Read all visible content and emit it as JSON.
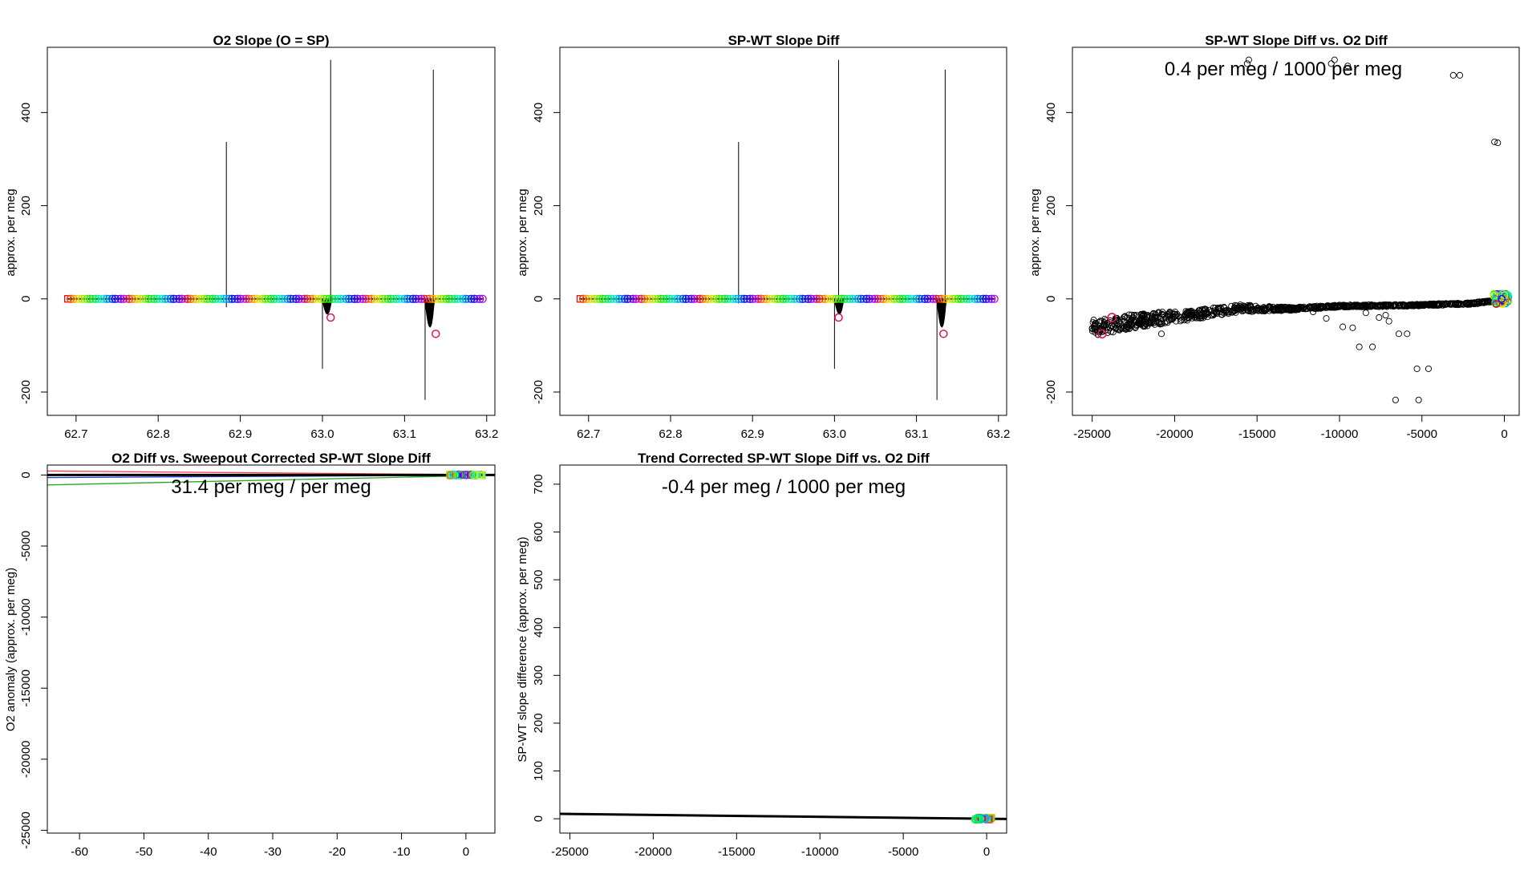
{
  "figure": {
    "background": "#ffffff",
    "layout": "2 rows x 3 columns (last cell empty)"
  },
  "chart_data": [
    {
      "id": "p1",
      "type": "scatter",
      "title": "O2 Slope (O = SP)",
      "xlabel": "",
      "ylabel": "approx. per meg",
      "xlim": [
        62.665,
        63.21
      ],
      "ylim": [
        -250,
        540
      ],
      "xticks": [
        62.7,
        62.8,
        62.9,
        63.0,
        63.1,
        63.2
      ],
      "xtick_labels": [
        "62.7",
        "62.8",
        "62.9",
        "63.0",
        "63.1",
        "63.2"
      ],
      "yticks": [
        -200,
        0,
        200,
        400
      ],
      "ytick_labels": [
        "-200",
        "0",
        "200",
        "400"
      ],
      "baseline": {
        "x_start": 62.69,
        "x_end": 63.195,
        "y": 0
      },
      "spikes": [
        {
          "x": 62.883,
          "ymin": -18,
          "ymax": 337
        },
        {
          "x": 63.0,
          "ymin": -150,
          "ymax": 0
        },
        {
          "x": 63.01,
          "ymin": 0,
          "ymax": 513
        },
        {
          "x": 63.125,
          "ymin": -217,
          "ymax": 0
        },
        {
          "x": 63.135,
          "ymin": 0,
          "ymax": 492
        }
      ],
      "dips": [
        {
          "x_start": 63.0,
          "x_end": 63.012,
          "y_min": -40
        },
        {
          "x_start": 63.125,
          "x_end": 63.137,
          "y_min": -75
        }
      ],
      "highlighted_points": [
        {
          "x": 63.01,
          "y": -40
        },
        {
          "x": 63.138,
          "y": -75
        }
      ],
      "point_color_scheme": "rainbow",
      "grid": false
    },
    {
      "id": "p2",
      "type": "scatter",
      "title": "SP-WT Slope Diff",
      "xlabel": "",
      "ylabel": "approx. per meg",
      "xlim": [
        62.665,
        63.21
      ],
      "ylim": [
        -250,
        540
      ],
      "xticks": [
        62.7,
        62.8,
        62.9,
        63.0,
        63.1,
        63.2
      ],
      "xtick_labels": [
        "62.7",
        "62.8",
        "62.9",
        "63.0",
        "63.1",
        "63.2"
      ],
      "yticks": [
        -200,
        0,
        200,
        400
      ],
      "ytick_labels": [
        "-200",
        "0",
        "200",
        "400"
      ],
      "baseline": {
        "x_start": 62.69,
        "x_end": 63.195,
        "y": 0
      },
      "spikes": [
        {
          "x": 62.883,
          "ymin": -10,
          "ymax": 337
        },
        {
          "x": 63.0,
          "ymin": -150,
          "ymax": 0
        },
        {
          "x": 63.005,
          "ymin": 0,
          "ymax": 513
        },
        {
          "x": 63.125,
          "ymin": -217,
          "ymax": 0
        },
        {
          "x": 63.135,
          "ymin": 0,
          "ymax": 492
        }
      ],
      "dips": [
        {
          "x_start": 63.0,
          "x_end": 63.012,
          "y_min": -40
        },
        {
          "x_start": 63.125,
          "x_end": 63.137,
          "y_min": -75
        }
      ],
      "highlighted_points": [
        {
          "x": 63.005,
          "y": -40
        },
        {
          "x": 63.133,
          "y": -75
        }
      ],
      "point_color_scheme": "rainbow",
      "grid": false
    },
    {
      "id": "p3",
      "type": "scatter",
      "title": "SP-WT Slope Diff vs. O2 Diff",
      "annotation": "0.4 per meg / 1000 per meg",
      "xlabel": "",
      "ylabel": "approx. per meg",
      "xlim": [
        -26200,
        900
      ],
      "ylim": [
        -250,
        540
      ],
      "xticks": [
        -25000,
        -20000,
        -15000,
        -10000,
        -5000,
        0
      ],
      "xtick_labels": [
        "-25000",
        "-20000",
        "-15000",
        "-10000",
        "-5000",
        "0"
      ],
      "yticks": [
        -200,
        0,
        200,
        400
      ],
      "ytick_labels": [
        "-200",
        "0",
        "200",
        "400"
      ],
      "band_upper": [
        [
          -25000,
          -45
        ],
        [
          -22000,
          -30
        ],
        [
          -19000,
          -25
        ],
        [
          -16000,
          -12
        ],
        [
          -13000,
          -18
        ],
        [
          -10000,
          -13
        ],
        [
          -6000,
          -12
        ],
        [
          -2000,
          -8
        ],
        [
          0,
          0
        ]
      ],
      "band_lower": [
        [
          -25000,
          -80
        ],
        [
          -22000,
          -60
        ],
        [
          -19000,
          -45
        ],
        [
          -16000,
          -28
        ],
        [
          -13000,
          -25
        ],
        [
          -10000,
          -18
        ],
        [
          -6000,
          -16
        ],
        [
          -2000,
          -12
        ],
        [
          0,
          -3
        ]
      ],
      "outliers": [
        [
          -15500,
          513
        ],
        [
          -15600,
          505
        ],
        [
          -10300,
          513
        ],
        [
          -10500,
          505
        ],
        [
          -9500,
          500
        ],
        [
          -3100,
          480
        ],
        [
          -2700,
          480
        ],
        [
          -600,
          337
        ],
        [
          -400,
          335
        ],
        [
          -20800,
          -75
        ],
        [
          -20300,
          -45
        ],
        [
          -10800,
          -42
        ],
        [
          -9800,
          -60
        ],
        [
          -9200,
          -62
        ],
        [
          -8800,
          -103
        ],
        [
          -8000,
          -103
        ],
        [
          -7600,
          -40
        ],
        [
          -7000,
          -48
        ],
        [
          -6400,
          -75
        ],
        [
          -5900,
          -75
        ],
        [
          -5300,
          -150
        ],
        [
          -4600,
          -150
        ],
        [
          -6600,
          -217
        ],
        [
          -5200,
          -217
        ],
        [
          -11200,
          -20
        ],
        [
          -11600,
          -28
        ],
        [
          -8400,
          -30
        ],
        [
          -7200,
          -35
        ]
      ],
      "highlighted_points": [
        {
          "x": -23800,
          "y": -40
        },
        {
          "x": -24400,
          "y": -75
        }
      ],
      "cluster_at": [
        -200,
        0
      ],
      "grid": false
    },
    {
      "id": "p4",
      "type": "scatter",
      "title": "O2 Diff vs. Sweepout Corrected SP-WT Slope Diff",
      "annotation": "31.4 per meg / per meg",
      "xlabel": "",
      "ylabel": "O2 anomaly (approx. per meg)",
      "xlim": [
        -65,
        4.5
      ],
      "ylim": [
        -25200,
        700
      ],
      "xticks": [
        -60,
        -50,
        -40,
        -30,
        -20,
        -10,
        0
      ],
      "xtick_labels": [
        "-60",
        "-50",
        "-40",
        "-30",
        "-20",
        "-10",
        "0"
      ],
      "yticks": [
        -25000,
        -20000,
        -15000,
        -10000,
        -5000,
        0
      ],
      "ytick_labels": [
        "-25000",
        "-20000",
        "-15000",
        "-10000",
        "-5000",
        "0"
      ],
      "fit_line": {
        "slope": 31.4,
        "intercept": 0
      },
      "group_lines": [
        {
          "color": "#ff3b3b",
          "x0": -65,
          "y0": 280,
          "x1": 3,
          "y1": 20
        },
        {
          "color": "#2233cc",
          "x0": -65,
          "y0": -180,
          "x1": 3,
          "y1": -10
        },
        {
          "color": "#22aa22",
          "x0": -65,
          "y0": -700,
          "x1": 3,
          "y1": -30
        }
      ],
      "cluster_x_range": [
        -2.5,
        2.5
      ],
      "grid": false
    },
    {
      "id": "p5",
      "type": "scatter",
      "title": "Trend Corrected SP-WT Slope Diff vs. O2 Diff",
      "annotation": "-0.4 per meg / 1000 per meg",
      "xlabel": "",
      "ylabel": "SP-WT slope difference (approx. per meg)",
      "xlim": [
        -25600,
        1200
      ],
      "ylim": [
        -30,
        740
      ],
      "xticks": [
        -25000,
        -20000,
        -15000,
        -10000,
        -5000,
        0
      ],
      "xtick_labels": [
        "-25000",
        "-20000",
        "-15000",
        "-10000",
        "-5000",
        "0"
      ],
      "yticks": [
        0,
        100,
        200,
        300,
        400,
        500,
        600,
        700
      ],
      "ytick_labels": [
        "0",
        "100",
        "200",
        "300",
        "400",
        "500",
        "600",
        "700"
      ],
      "fit_line": {
        "slope": -0.0004,
        "intercept": 0
      },
      "cluster_x_range": [
        -700,
        300
      ],
      "grid": false
    }
  ]
}
